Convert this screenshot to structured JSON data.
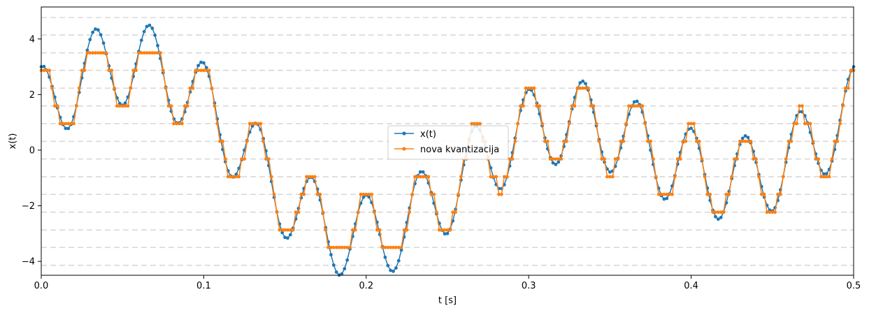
{
  "chart_data": {
    "type": "line",
    "title": "",
    "xlabel": "t [s]",
    "ylabel": "x(t)",
    "xlim": [
      0,
      0.5
    ],
    "ylim": [
      -4.5,
      5.15
    ],
    "xticks": [
      0,
      0.1,
      0.2,
      0.3,
      0.4,
      0.5
    ],
    "xtick_labels": [
      "0.0",
      "0.1",
      "0.2",
      "0.3",
      "0.4",
      "0.5"
    ],
    "yticks": [
      -4,
      -2,
      0,
      2,
      4
    ],
    "ytick_labels": [
      "−4",
      "−2",
      "0",
      "2",
      "4"
    ],
    "grid": "horizontal dashed lines at quantization levels",
    "quantization_levels": [
      -4.14,
      -3.5,
      -2.87,
      -2.23,
      -1.59,
      -0.955,
      -0.318,
      0.318,
      0.955,
      1.59,
      2.23,
      2.87,
      3.5,
      4.14,
      4.77
    ],
    "legend_position": "center",
    "sample_rate_hz": 600,
    "signal_model": "x(t) = 1.5*cos(2*pi*2*t) + 2*sin(2*pi*4*t) + 1.5*cos(2*pi*30*t)",
    "series": [
      {
        "name": "x(t)",
        "color": "#1f77b4",
        "marker": "dot"
      },
      {
        "name": "nova kvantizacija",
        "color": "#ff7f0e",
        "marker": "dot",
        "quantized": true
      }
    ]
  }
}
